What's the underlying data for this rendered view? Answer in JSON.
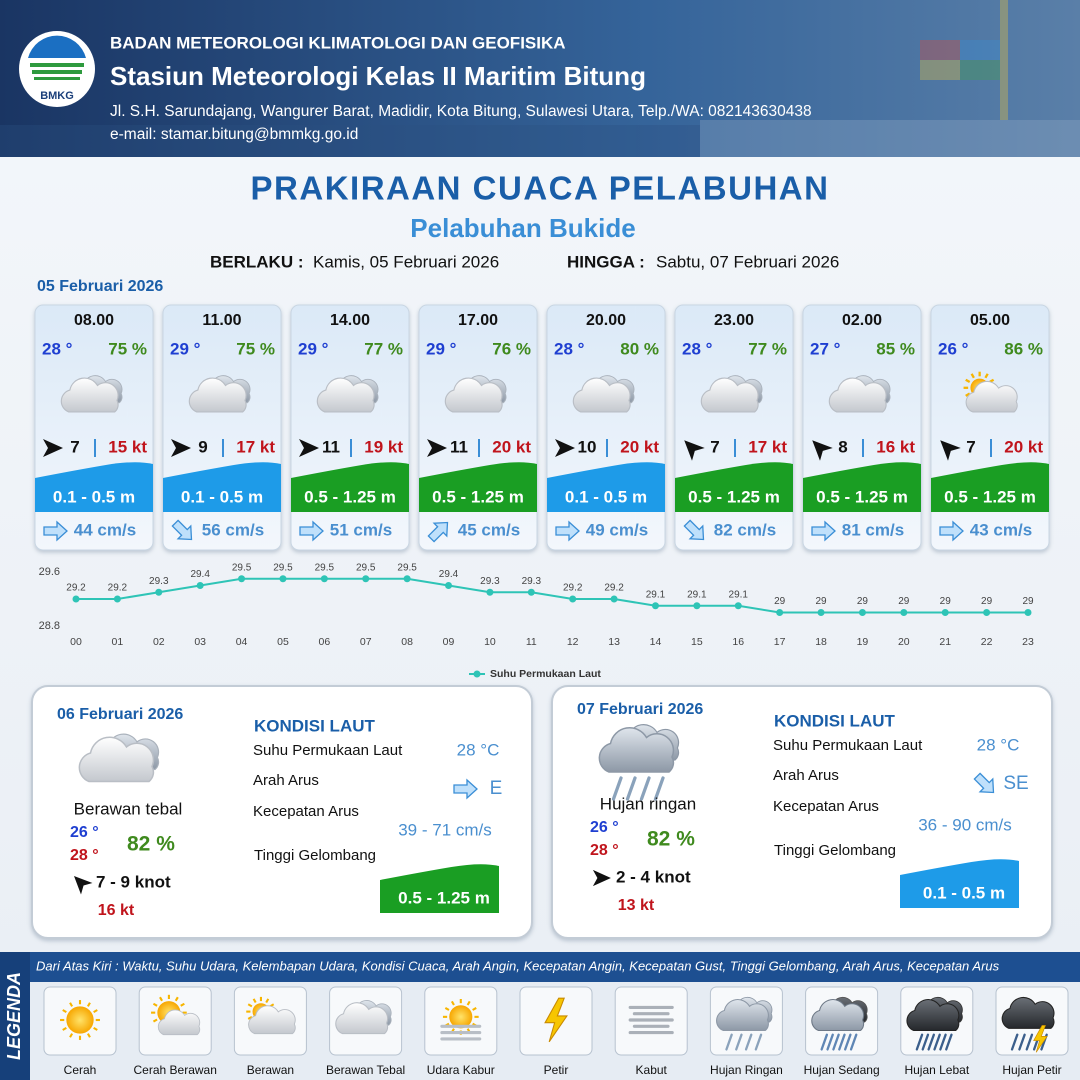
{
  "header": {
    "logo_text": "BMKG",
    "agency": "BADAN METEOROLOGI KLIMATOLOGI DAN GEOFISIKA",
    "station": "Stasiun Meteorologi Kelas II Maritim Bitung",
    "address": "Jl. S.H. Sarundajang, Wangurer Barat, Madidir, Kota Bitung, Sulawesi Utara, Telp./WA: 082143630438",
    "email": "e-mail: stamar.bitung@bmmkg.go.id"
  },
  "title": "PRAKIRAAN CUACA PELABUHAN",
  "subtitle": "Pelabuhan Bukide",
  "validity": {
    "from_label": "BERLAKU :",
    "from": "Kamis, 05 Februari 2026",
    "until_label": "HINGGA :",
    "until": "Sabtu, 07 Februari 2026"
  },
  "today": {
    "date": "05 Februari 2026",
    "forecast": [
      {
        "time": "08.00",
        "temp": "28 °",
        "humidity": "75 %",
        "icon": "Berawan Tebal",
        "wind_heading": 90,
        "wind": "7",
        "gust": "15 kt",
        "wave": "0.1 - 0.5 m",
        "wave_color": "#1e9be8",
        "current_heading": 90,
        "current": "44 cm/s"
      },
      {
        "time": "11.00",
        "temp": "29 °",
        "humidity": "75 %",
        "icon": "Berawan Tebal",
        "wind_heading": 90,
        "wind": "9",
        "gust": "17 kt",
        "wave": "0.1 - 0.5 m",
        "wave_color": "#1e9be8",
        "current_heading": 135,
        "current": "56 cm/s"
      },
      {
        "time": "14.00",
        "temp": "29 °",
        "humidity": "77 %",
        "icon": "Berawan Tebal",
        "wind_heading": 90,
        "wind": "11",
        "gust": "19 kt",
        "wave": "0.5 - 1.25 m",
        "wave_color": "#1a9e23",
        "current_heading": 90,
        "current": "51 cm/s"
      },
      {
        "time": "17.00",
        "temp": "29 °",
        "humidity": "76 %",
        "icon": "Berawan Tebal",
        "wind_heading": 90,
        "wind": "11",
        "gust": "20 kt",
        "wave": "0.5 - 1.25 m",
        "wave_color": "#1a9e23",
        "current_heading": 45,
        "current": "45 cm/s"
      },
      {
        "time": "20.00",
        "temp": "28 °",
        "humidity": "80 %",
        "icon": "Berawan Tebal",
        "wind_heading": 90,
        "wind": "10",
        "gust": "20 kt",
        "wave": "0.1 - 0.5 m",
        "wave_color": "#1e9be8",
        "current_heading": 90,
        "current": "49 cm/s"
      },
      {
        "time": "23.00",
        "temp": "28 °",
        "humidity": "77 %",
        "icon": "Berawan Tebal",
        "wind_heading": 315,
        "wind": "7",
        "gust": "17 kt",
        "wave": "0.5 - 1.25 m",
        "wave_color": "#1a9e23",
        "current_heading": 135,
        "current": "82 cm/s"
      },
      {
        "time": "02.00",
        "temp": "27 °",
        "humidity": "85 %",
        "icon": "Berawan Tebal",
        "wind_heading": 315,
        "wind": "8",
        "gust": "16 kt",
        "wave": "0.5 - 1.25 m",
        "wave_color": "#1a9e23",
        "current_heading": 90,
        "current": "81 cm/s"
      },
      {
        "time": "05.00",
        "temp": "26 °",
        "humidity": "86 %",
        "icon": "Berawan",
        "wind_heading": 315,
        "wind": "7",
        "gust": "20 kt",
        "wave": "0.5 - 1.25 m",
        "wave_color": "#1a9e23",
        "current_heading": 90,
        "current": "43 cm/s"
      }
    ]
  },
  "chart_data": {
    "type": "line",
    "categories": [
      "00",
      "01",
      "02",
      "03",
      "04",
      "05",
      "06",
      "07",
      "08",
      "09",
      "10",
      "11",
      "12",
      "13",
      "14",
      "15",
      "16",
      "17",
      "18",
      "19",
      "20",
      "21",
      "22",
      "23"
    ],
    "series": [
      {
        "name": "Suhu Permukaan Laut",
        "color": "#2ec4b6",
        "values": [
          29.2,
          29.2,
          29.3,
          29.4,
          29.5,
          29.5,
          29.5,
          29.5,
          29.5,
          29.4,
          29.3,
          29.3,
          29.2,
          29.2,
          29.1,
          29.1,
          29.1,
          29.0,
          29.0,
          29.0,
          29.0,
          29.0,
          29.0,
          29.0
        ]
      }
    ],
    "ylim": [
      28.8,
      29.6
    ],
    "yticks": [
      28.8,
      29.6
    ]
  },
  "days": [
    {
      "date": "06 Februari 2026",
      "icon": "Berawan Tebal",
      "condition": "Berawan tebal",
      "temp_min": "26 °",
      "temp_max": "28 °",
      "humidity": "82 %",
      "wind_heading": 315,
      "wind": "7  - 9 knot",
      "gust": "16 kt",
      "sea": {
        "title": "KONDISI LAUT",
        "sst_label": "Suhu Permukaan Laut",
        "sst": "28 °C",
        "dir_label": "Arah Arus",
        "dir": "E",
        "current_heading": 90,
        "speed_label": "Kecepatan Arus",
        "speed": "39 - 71 cm/s",
        "wave_label": "Tinggi Gelombang",
        "wave": "0.5 - 1.25 m",
        "wave_color": "#1a9e23"
      }
    },
    {
      "date": "07 Februari 2026",
      "icon": "Hujan Ringan",
      "condition": "Hujan ringan",
      "temp_min": "26 °",
      "temp_max": "28 °",
      "humidity": "82 %",
      "wind_heading": 90,
      "wind": "2  - 4 knot",
      "gust": "13 kt",
      "sea": {
        "title": "KONDISI LAUT",
        "sst_label": "Suhu Permukaan Laut",
        "sst": "28 °C",
        "dir_label": "Arah Arus",
        "dir": "SE",
        "current_heading": 135,
        "speed_label": "Kecepatan Arus",
        "speed": "36 - 90 cm/s",
        "wave_label": "Tinggi Gelombang",
        "wave": "0.1 - 0.5 m",
        "wave_color": "#1e9be8"
      }
    }
  ],
  "legend": {
    "title": "LEGENDA",
    "description": "Dari Atas Kiri : Waktu, Suhu Udara, Kelembapan Udara, Kondisi Cuaca, Arah Angin, Kecepatan Angin, Kecepatan Gust, Tinggi Gelombang, Arah Arus, Kecepatan Arus",
    "items": [
      "Cerah",
      "Cerah Berawan",
      "Berawan",
      "Berawan Tebal",
      "Udara Kabur",
      "Petir",
      "Kabut",
      "Hujan Ringan",
      "Hujan Sedang",
      "Hujan Lebat",
      "Hujan Petir"
    ]
  }
}
